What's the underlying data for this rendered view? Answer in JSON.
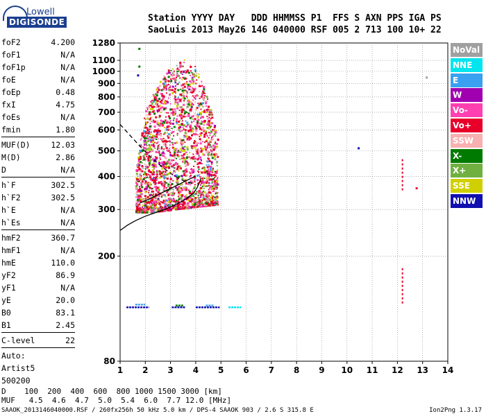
{
  "logo": {
    "line1": "Lowell",
    "line2": "DIGISONDE"
  },
  "header": {
    "row1": "Station YYYY DAY   DDD HHMMSS P1  FFS S AXN PPS IGA PS",
    "row2": "SaoLuis 2013 May26 146 040000 RSF 005 2 713 100 10+ 22"
  },
  "params": [
    {
      "k": "foF2",
      "v": "4.200"
    },
    {
      "k": "foF1",
      "v": "N/A"
    },
    {
      "k": "foF1p",
      "v": "N/A"
    },
    {
      "k": "foE",
      "v": "N/A"
    },
    {
      "k": "foEp",
      "v": "0.48"
    },
    {
      "k": "fxI",
      "v": "4.75"
    },
    {
      "k": "foEs",
      "v": "N/A"
    },
    {
      "k": "fmin",
      "v": "1.80",
      "sep": true
    },
    {
      "k": "MUF(D)",
      "v": "12.03"
    },
    {
      "k": "M(D)",
      "v": "2.86"
    },
    {
      "k": "D",
      "v": "N/A",
      "sep": true
    },
    {
      "k": "h`F",
      "v": "302.5"
    },
    {
      "k": "h`F2",
      "v": "302.5"
    },
    {
      "k": "h`E",
      "v": "N/A"
    },
    {
      "k": "h`Es",
      "v": "N/A",
      "sep": true
    },
    {
      "k": "hmF2",
      "v": "360.7"
    },
    {
      "k": "hmF1",
      "v": "N/A"
    },
    {
      "k": "hmE",
      "v": "110.0"
    },
    {
      "k": "yF2",
      "v": "86.9"
    },
    {
      "k": "yF1",
      "v": "N/A"
    },
    {
      "k": "yE",
      "v": "20.0"
    },
    {
      "k": "B0",
      "v": "83.1"
    },
    {
      "k": "B1",
      "v": "2.45",
      "sep": true
    },
    {
      "k": "C-level",
      "v": "22",
      "sep": true
    },
    {
      "k": "Auto:",
      "v": ""
    },
    {
      "k": "Artist5",
      "v": ""
    },
    {
      "k": "500200",
      "v": ""
    }
  ],
  "legend": [
    {
      "label": "NoVal",
      "color": "#a0a0a0"
    },
    {
      "label": "NNE",
      "color": "#00e5ee"
    },
    {
      "label": "E",
      "color": "#3aa0f0"
    },
    {
      "label": "W",
      "color": "#a000b0"
    },
    {
      "label": "Vo-",
      "color": "#ff40b0"
    },
    {
      "label": "Vo+",
      "color": "#e8002a"
    },
    {
      "label": "SSW",
      "color": "#f8b0b0"
    },
    {
      "label": "X-",
      "color": "#007a00"
    },
    {
      "label": "X+",
      "color": "#70b040"
    },
    {
      "label": "SSE",
      "color": "#d0d000"
    },
    {
      "label": "NNW",
      "color": "#1010b0"
    }
  ],
  "bottom": {
    "row_d": "D    100  200  400  600  800 1000 1500 3000 [km]",
    "row_muf": "MUF   4.5  4.6  4.7  5.0  5.4  6.0  7.7 12.0 [MHz]"
  },
  "footer": {
    "left": "SAAOK_2013146040000.RSF / 260fx256h 50 kHz 5.0 km / DPS-4 SAAOK 903 / 2.6 S 315.8 E",
    "right": "Ion2Png 1.3.17"
  },
  "chart_data": {
    "type": "scatter",
    "title": "",
    "xlabel": "",
    "ylabel": "",
    "x_ticks": [
      1,
      2,
      3,
      4,
      5,
      6,
      7,
      8,
      9,
      10,
      11,
      12,
      13,
      14
    ],
    "y_ticks": [
      80,
      200,
      300,
      400,
      500,
      600,
      700,
      800,
      900,
      1000,
      1100,
      1280
    ],
    "xlim": [
      1,
      14
    ],
    "ylim": [
      80,
      1280
    ],
    "y_scale": "logarithmic",
    "grid": "dotted",
    "curves": [
      {
        "name": "o-trace",
        "style": "solid",
        "x": [
          1.0,
          1.3,
          1.6,
          2.0,
          2.4,
          2.8,
          3.2,
          3.6,
          3.9,
          4.05,
          4.15,
          4.2
        ],
        "y": [
          250,
          262,
          272,
          283,
          292,
          301,
          313,
          328,
          345,
          362,
          380,
          395
        ]
      },
      {
        "name": "o-trace-upper",
        "style": "solid",
        "x": [
          1.8,
          2.2,
          2.6,
          3.0,
          3.3,
          3.6,
          3.85,
          4.0
        ],
        "y": [
          318,
          330,
          345,
          360,
          372,
          385,
          395,
          402
        ]
      },
      {
        "name": "extrapolation",
        "style": "dashed",
        "x": [
          1.0,
          1.3,
          1.6,
          1.9,
          2.2,
          2.5,
          2.8,
          3.1,
          3.4,
          3.7,
          3.95
        ],
        "y": [
          630,
          585,
          545,
          507,
          475,
          448,
          425,
          405,
          390,
          380,
          376
        ]
      }
    ],
    "points": [
      {
        "x": 1.75,
        "y": 1220,
        "s": "X-"
      },
      {
        "x": 1.75,
        "y": 1045,
        "s": "X-"
      },
      {
        "x": 1.7,
        "y": 968,
        "s": "NNW"
      },
      {
        "x": 10.45,
        "y": 513,
        "s": "NNW"
      },
      {
        "x": 12.75,
        "y": 362,
        "s": "Vo+"
      },
      {
        "x": 13.15,
        "y": 950,
        "s": "NoVal"
      },
      {
        "x": 2.1,
        "y": 510,
        "s": "X+"
      },
      {
        "x": 2.15,
        "y": 505,
        "s": "SSE"
      }
    ],
    "vertical_dot_lines": [
      {
        "x": 12.2,
        "y_from": 355,
        "y_to": 465,
        "s": "Vo+"
      },
      {
        "x": 12.2,
        "y_from": 130,
        "y_to": 180,
        "s": "Vo+"
      }
    ],
    "es_segments": [
      {
        "x_from": 1.25,
        "x_to": 2.15,
        "y": 128,
        "s": "NNW"
      },
      {
        "x_from": 1.6,
        "x_to": 2.0,
        "y": 131,
        "s": "E"
      },
      {
        "x_from": 3.05,
        "x_to": 3.6,
        "y": 128,
        "s": "NNW"
      },
      {
        "x_from": 3.2,
        "x_to": 3.5,
        "y": 130,
        "s": "X-"
      },
      {
        "x_from": 4.0,
        "x_to": 4.95,
        "y": 128,
        "s": "NNW"
      },
      {
        "x_from": 4.4,
        "x_to": 4.7,
        "y": 130,
        "s": "E"
      },
      {
        "x_from": 5.3,
        "x_to": 5.8,
        "y": 128,
        "s": "NNE"
      }
    ],
    "f_region_cloud": {
      "x_range": [
        1.6,
        4.85
      ],
      "y_min": 295,
      "top_by_x": [
        [
          1.6,
          420
        ],
        [
          2.0,
          720
        ],
        [
          2.5,
          900
        ],
        [
          3.0,
          1050
        ],
        [
          3.5,
          1120
        ],
        [
          4.0,
          1050
        ],
        [
          4.4,
          820
        ],
        [
          4.85,
          560
        ]
      ],
      "density": "high near 300-450 km",
      "species": [
        "Vo+",
        "Vo-",
        "SSE",
        "X-",
        "X+",
        "SSW",
        "W",
        "E",
        "NoVal"
      ]
    }
  }
}
